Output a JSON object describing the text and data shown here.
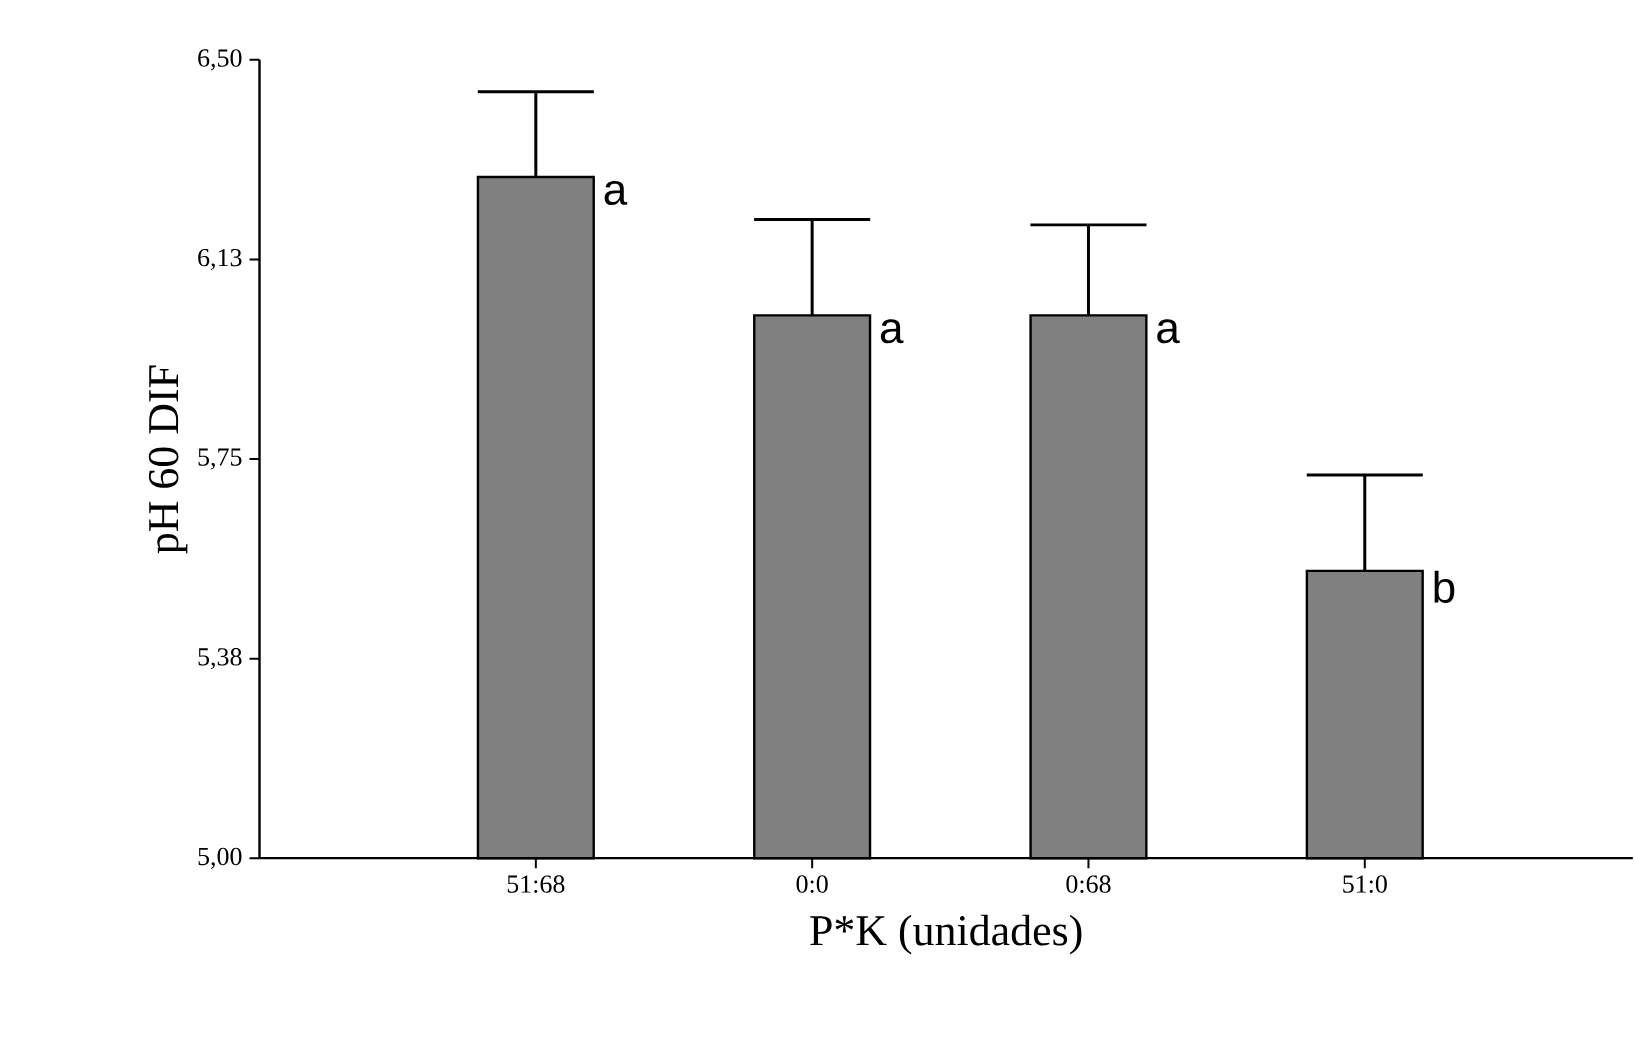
{
  "chart_data": {
    "type": "bar",
    "xlabel": "P*K (unidades)",
    "ylabel": "pH 60 DIF",
    "categories": [
      "51:68",
      "0:0",
      "0:68",
      "51:0"
    ],
    "values": [
      6.28,
      6.02,
      6.02,
      5.54
    ],
    "errors": [
      0.16,
      0.18,
      0.17,
      0.18
    ],
    "color": "#808080",
    "ylim": [
      5.0,
      6.5
    ],
    "yticks": [
      {
        "value": 5.0,
        "label": "5,00"
      },
      {
        "value": 5.375,
        "label": "5,38"
      },
      {
        "value": 5.75,
        "label": "5,75"
      },
      {
        "value": 6.125,
        "label": "6,13"
      },
      {
        "value": 6.5,
        "label": "6,50"
      }
    ],
    "annotations": [
      {
        "text": "a",
        "x": "51:68",
        "y": 6.28
      },
      {
        "text": "a",
        "x": "0:0",
        "y": 6.02
      },
      {
        "text": "a",
        "x": "0:68",
        "y": 6.02
      },
      {
        "text": "b",
        "x": "51:0",
        "y": 5.54
      }
    ],
    "grid": false
  }
}
